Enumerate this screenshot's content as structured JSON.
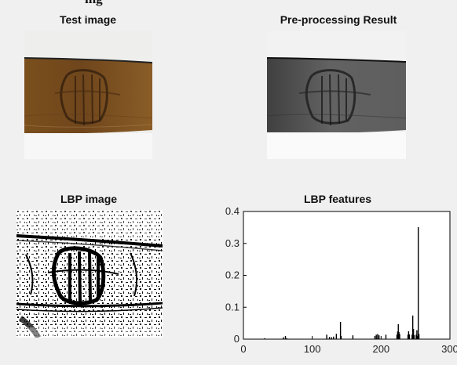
{
  "figure": {
    "cut_title": "ing",
    "panels": [
      {
        "title": "Test image"
      },
      {
        "title": "Pre-processing Result"
      },
      {
        "title": "LBP image"
      },
      {
        "title": "LBP features"
      }
    ]
  },
  "chart_data": {
    "type": "bar",
    "title": "LBP features",
    "xlabel": "",
    "ylabel": "",
    "xlim": [
      0,
      300
    ],
    "ylim": [
      0,
      0.4
    ],
    "x_ticks": [
      0,
      100,
      200,
      300
    ],
    "y_ticks": [
      0,
      0.1,
      0.2,
      0.3,
      0.4
    ],
    "x_tick_labels": [
      "0",
      "100",
      "200",
      "300"
    ],
    "y_tick_labels": [
      "0",
      "0.1",
      "0.2",
      "0.3",
      "0.4"
    ],
    "grid": false,
    "bar_color": "#000000",
    "bars": [
      {
        "x": 31,
        "y": 0.003
      },
      {
        "x": 58,
        "y": 0.006
      },
      {
        "x": 61,
        "y": 0.01
      },
      {
        "x": 63,
        "y": 0.003
      },
      {
        "x": 121,
        "y": 0.014
      },
      {
        "x": 125,
        "y": 0.007
      },
      {
        "x": 128,
        "y": 0.006
      },
      {
        "x": 131,
        "y": 0.008
      },
      {
        "x": 135,
        "y": 0.017
      },
      {
        "x": 141,
        "y": 0.054
      },
      {
        "x": 142,
        "y": 0.01
      },
      {
        "x": 159,
        "y": 0.012
      },
      {
        "x": 191,
        "y": 0.01
      },
      {
        "x": 193,
        "y": 0.014
      },
      {
        "x": 195,
        "y": 0.016
      },
      {
        "x": 197,
        "y": 0.012
      },
      {
        "x": 207,
        "y": 0.014
      },
      {
        "x": 223,
        "y": 0.014
      },
      {
        "x": 224,
        "y": 0.024
      },
      {
        "x": 225,
        "y": 0.047
      },
      {
        "x": 226,
        "y": 0.022
      },
      {
        "x": 227,
        "y": 0.016
      },
      {
        "x": 239,
        "y": 0.014
      },
      {
        "x": 240,
        "y": 0.025
      },
      {
        "x": 241,
        "y": 0.015
      },
      {
        "x": 245,
        "y": 0.014
      },
      {
        "x": 246,
        "y": 0.074
      },
      {
        "x": 247,
        "y": 0.032
      },
      {
        "x": 248,
        "y": 0.013
      },
      {
        "x": 251,
        "y": 0.014
      },
      {
        "x": 252,
        "y": 0.028
      },
      {
        "x": 253,
        "y": 0.01
      },
      {
        "x": 254,
        "y": 0.351
      },
      {
        "x": 255,
        "y": 0.016
      }
    ]
  }
}
